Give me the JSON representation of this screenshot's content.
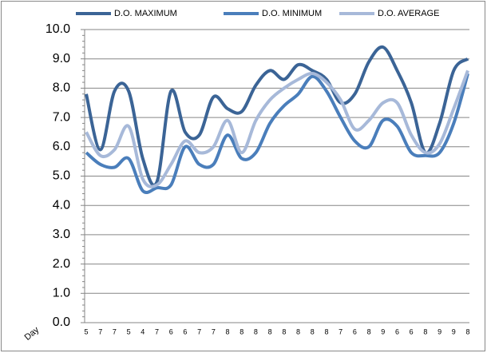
{
  "chart_data": {
    "type": "line",
    "x_label": "Day",
    "categories": [
      "5",
      "7",
      "7",
      "5",
      "4",
      "7",
      "6",
      "6",
      "7",
      "7",
      "8",
      "8",
      "8",
      "8",
      "8",
      "8",
      "8",
      "8",
      "7",
      "6",
      "8",
      "9",
      "6",
      "6",
      "8",
      "9",
      "9",
      "8"
    ],
    "series": [
      {
        "name": "D.O. MAXIMUM",
        "color": "#3b6496",
        "values": [
          7.8,
          5.9,
          7.9,
          7.9,
          5.6,
          4.8,
          7.9,
          6.5,
          6.4,
          7.7,
          7.3,
          7.2,
          8.1,
          8.6,
          8.3,
          8.8,
          8.6,
          8.3,
          7.5,
          7.8,
          8.9,
          9.4,
          8.6,
          7.5,
          5.8,
          6.8,
          8.6,
          9.0
        ]
      },
      {
        "name": "D.O. MINIMUM",
        "color": "#4a7ebb",
        "values": [
          5.8,
          5.4,
          5.3,
          5.6,
          4.5,
          4.6,
          4.7,
          6.0,
          5.4,
          5.4,
          6.4,
          5.6,
          5.8,
          6.8,
          7.4,
          7.8,
          8.4,
          7.9,
          7.0,
          6.2,
          6.0,
          6.9,
          6.7,
          5.8,
          5.7,
          5.8,
          6.8,
          8.5
        ]
      },
      {
        "name": "D.O. AVERAGE",
        "color": "#a7b9d9",
        "values": [
          6.5,
          5.7,
          5.9,
          6.7,
          4.9,
          4.7,
          5.4,
          6.2,
          5.8,
          6.0,
          6.9,
          5.8,
          6.9,
          7.6,
          8.0,
          8.3,
          8.5,
          8.2,
          7.6,
          6.6,
          6.9,
          7.5,
          7.5,
          6.4,
          5.8,
          6.1,
          7.3,
          8.6
        ]
      }
    ],
    "ylim": [
      0,
      10
    ],
    "yticks": [
      {
        "value": 0,
        "label": "0.0"
      },
      {
        "value": 1,
        "label": "1.0"
      },
      {
        "value": 2,
        "label": "2.0"
      },
      {
        "value": 3,
        "label": "3.0"
      },
      {
        "value": 4,
        "label": "4.0"
      },
      {
        "value": 5,
        "label": "5.0"
      },
      {
        "value": 6,
        "label": "6.0"
      },
      {
        "value": 7,
        "label": "7.0"
      },
      {
        "value": 8,
        "label": "8.0"
      },
      {
        "value": 9,
        "label": "9.0"
      },
      {
        "value": 10,
        "label": "10.0"
      }
    ],
    "grid": true,
    "legend": "top"
  }
}
